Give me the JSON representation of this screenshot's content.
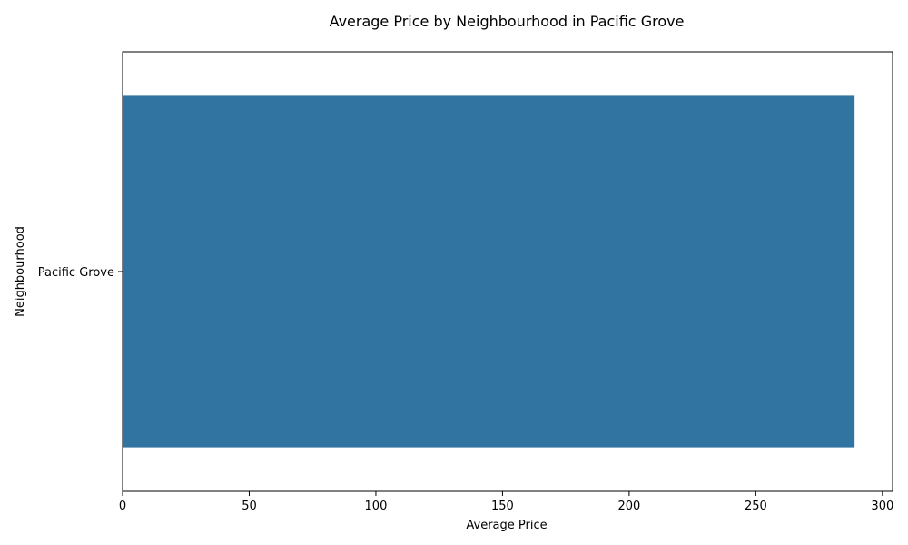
{
  "chart_data": {
    "type": "bar",
    "orientation": "horizontal",
    "title": "Average Price by Neighbourhood in Pacific Grove",
    "xlabel": "Average Price",
    "ylabel": "Neighbourhood",
    "categories": [
      "Pacific Grove"
    ],
    "values": [
      289
    ],
    "xlim": [
      0,
      304
    ],
    "xticks": [
      0,
      50,
      100,
      150,
      200,
      250,
      300
    ],
    "bar_color": "#3274a1",
    "grid": false,
    "legend": "none"
  }
}
